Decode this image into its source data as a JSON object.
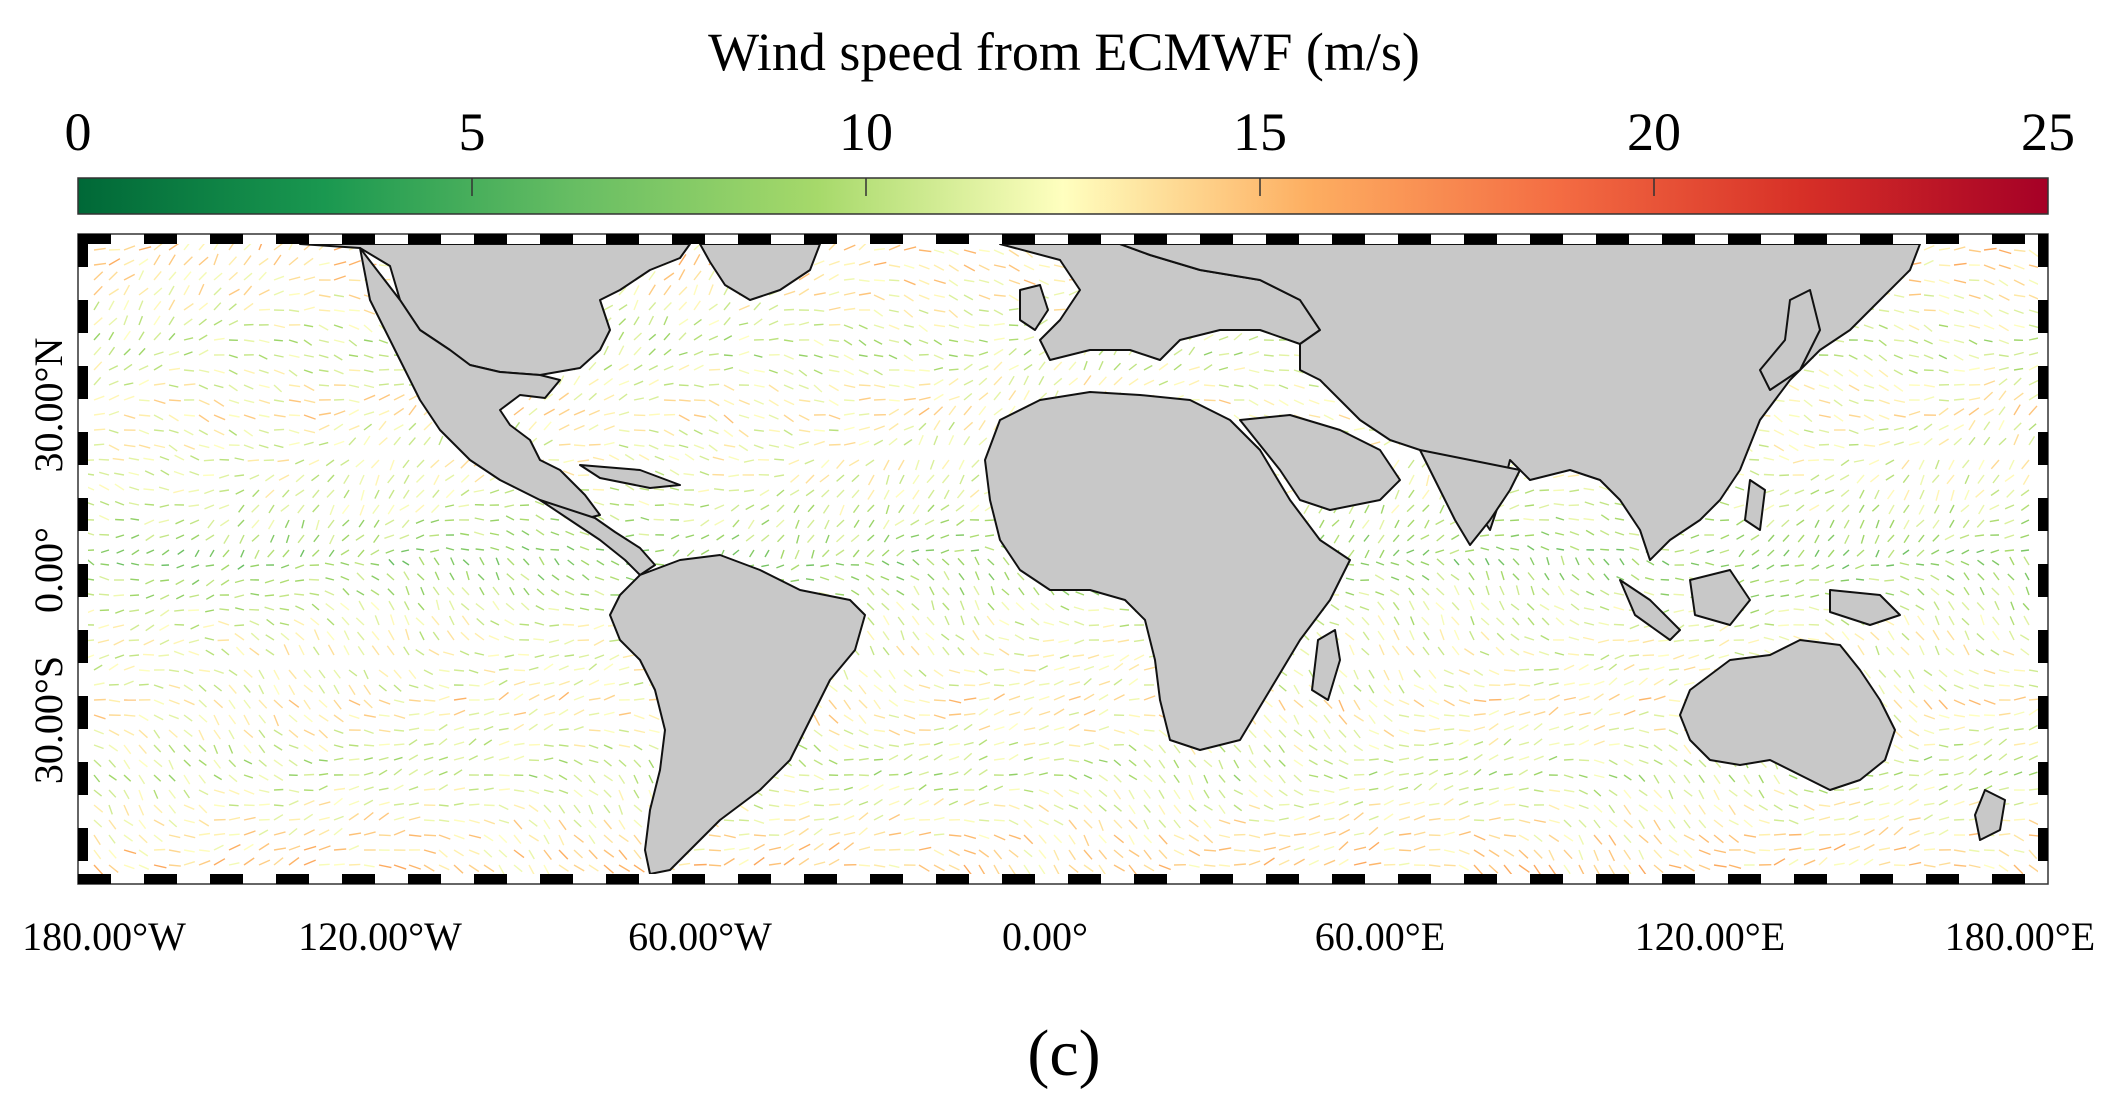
{
  "figure": {
    "colorbar_title": "Wind speed from ECMWF (m/s)",
    "colorbar_ticks": [
      "0",
      "5",
      "10",
      "15",
      "20",
      "25"
    ],
    "colorbar_range": [
      0,
      25
    ],
    "colorbar_colors": [
      "#006837",
      "#1a9850",
      "#66bd63",
      "#a6d96a",
      "#ffffbf",
      "#fdae61",
      "#f46d43",
      "#d73027",
      "#a50026"
    ],
    "lon_labels": [
      "180.00°W",
      "120.00°W",
      "60.00°W",
      "0.00°",
      "60.00°E",
      "120.00°E",
      "180.00°E"
    ],
    "lat_labels": [
      "30.00°N",
      "0.00°",
      "30.00°S"
    ],
    "panel_label": "(c)",
    "land_color": "#c8c8c8",
    "ocean_color": "#ffffff"
  }
}
